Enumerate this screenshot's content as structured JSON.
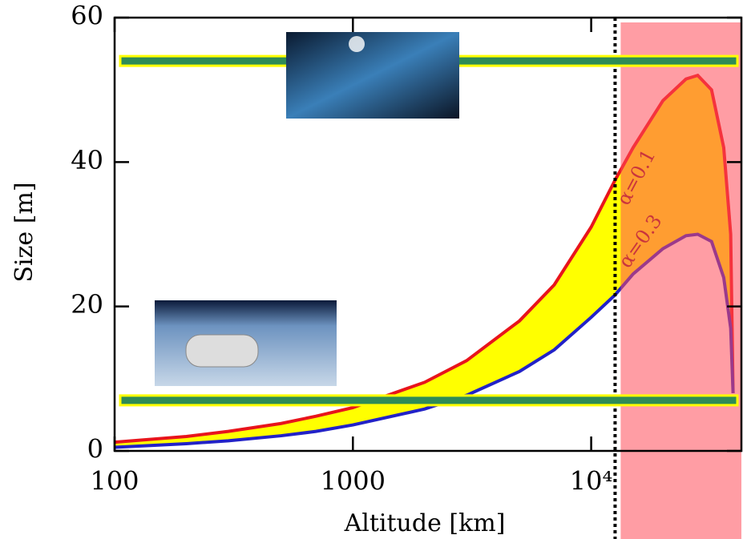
{
  "chart_data": {
    "type": "line",
    "xlabel": "Altitude [km]",
    "ylabel": "Size [m]",
    "xscale": "log",
    "xlim": [
      100,
      42700
    ],
    "ylim": [
      0,
      60
    ],
    "xticks": [
      100,
      1000,
      {
        "value": 10000,
        "label": "10⁴"
      }
    ],
    "yticks": [
      0,
      20,
      40,
      60
    ],
    "x": [
      100,
      200,
      300,
      500,
      700,
      1000,
      2000,
      3000,
      5000,
      7000,
      10000,
      12600,
      15000,
      20000,
      25000,
      28000,
      32000,
      36000,
      38500,
      39400
    ],
    "series": [
      {
        "name": "α=0.1",
        "color": "#e8141c",
        "values": [
          1.2,
          2.0,
          2.7,
          3.8,
          4.8,
          6.0,
          9.5,
          12.5,
          18,
          23,
          31,
          37.5,
          42,
          48.5,
          51.5,
          52,
          50,
          42,
          30,
          8
        ]
      },
      {
        "name": "α=0.3",
        "color": "#2222c8",
        "values": [
          0.5,
          1.0,
          1.4,
          2.1,
          2.7,
          3.6,
          5.8,
          7.7,
          11,
          14,
          18.5,
          21.6,
          24.5,
          28,
          29.8,
          30,
          29,
          24,
          17,
          8
        ]
      }
    ],
    "fill_between_color": "#ffff00",
    "shaded_region": {
      "x": [
        13300,
        42700
      ],
      "color": "#ff4d5a"
    },
    "vline": 12600,
    "reference_lines": [
      {
        "value": 54,
        "color": "#2e8b57",
        "edge": "#ffff00"
      },
      {
        "value": 7,
        "color": "#2e8b57",
        "edge": "#ffff00"
      }
    ]
  }
}
